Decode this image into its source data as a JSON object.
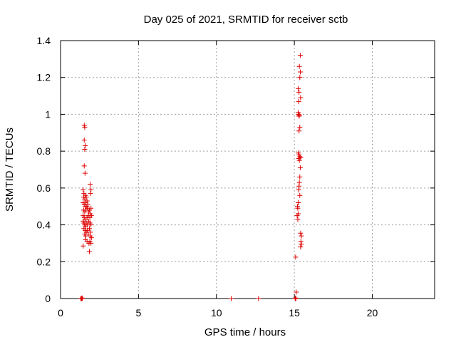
{
  "chart_data": {
    "type": "scatter",
    "title": "Day 025 of 2021, SRMTID for receiver sctb",
    "xlabel": "GPS time / hours",
    "ylabel": "SRMTID / TECUs",
    "xlim": [
      0,
      24
    ],
    "ylim": [
      0,
      1.4
    ],
    "xticks": [
      "0",
      "5",
      "10",
      "15",
      "20"
    ],
    "xtick_values": [
      0,
      5,
      10,
      15,
      20
    ],
    "yticks": [
      "0",
      "0.2",
      "0.4",
      "0.6",
      "0.8",
      "1",
      "1.2",
      "1.4"
    ],
    "ytick_values": [
      0,
      0.2,
      0.4,
      0.6,
      0.8,
      1.0,
      1.2,
      1.4
    ],
    "grid": true,
    "marker": "plus",
    "color": "#dd0000",
    "series": [
      {
        "name": "SRMTID",
        "points": [
          [
            1.3,
            0.0
          ],
          [
            1.33,
            0.0
          ],
          [
            1.36,
            0.0
          ],
          [
            1.4,
            0.0
          ],
          [
            1.38,
            0.003
          ],
          [
            1.52,
            0.94
          ],
          [
            1.55,
            0.93
          ],
          [
            1.52,
            0.86
          ],
          [
            1.58,
            0.83
          ],
          [
            1.55,
            0.81
          ],
          [
            1.52,
            0.72
          ],
          [
            1.57,
            0.68
          ],
          [
            1.45,
            0.59
          ],
          [
            1.5,
            0.57
          ],
          [
            1.48,
            0.55
          ],
          [
            1.55,
            0.54
          ],
          [
            1.6,
            0.56
          ],
          [
            1.65,
            0.55
          ],
          [
            1.7,
            0.53
          ],
          [
            1.45,
            0.52
          ],
          [
            1.52,
            0.51
          ],
          [
            1.58,
            0.5
          ],
          [
            1.62,
            0.52
          ],
          [
            1.68,
            0.5
          ],
          [
            1.72,
            0.49
          ],
          [
            1.75,
            0.51
          ],
          [
            1.48,
            0.48
          ],
          [
            1.55,
            0.47
          ],
          [
            1.63,
            0.48
          ],
          [
            1.8,
            0.47
          ],
          [
            1.85,
            0.48
          ],
          [
            1.9,
            0.46
          ],
          [
            1.95,
            0.49
          ],
          [
            1.45,
            0.45
          ],
          [
            1.52,
            0.44
          ],
          [
            1.6,
            0.43
          ],
          [
            1.7,
            0.44
          ],
          [
            1.78,
            0.45
          ],
          [
            1.88,
            0.44
          ],
          [
            1.98,
            0.45
          ],
          [
            1.45,
            0.42
          ],
          [
            1.5,
            0.41
          ],
          [
            1.55,
            0.4
          ],
          [
            1.6,
            0.39
          ],
          [
            1.65,
            0.41
          ],
          [
            1.72,
            0.4
          ],
          [
            1.8,
            0.42
          ],
          [
            1.88,
            0.41
          ],
          [
            1.95,
            0.4
          ],
          [
            1.5,
            0.38
          ],
          [
            1.58,
            0.37
          ],
          [
            1.65,
            0.36
          ],
          [
            1.72,
            0.37
          ],
          [
            1.85,
            0.38
          ],
          [
            1.92,
            0.36
          ],
          [
            1.55,
            0.35
          ],
          [
            1.62,
            0.34
          ],
          [
            1.78,
            0.35
          ],
          [
            1.9,
            0.34
          ],
          [
            1.98,
            0.33
          ],
          [
            1.6,
            0.32
          ],
          [
            1.7,
            0.31
          ],
          [
            1.82,
            0.3
          ],
          [
            1.88,
            0.31
          ],
          [
            1.95,
            0.3
          ],
          [
            1.45,
            0.285
          ],
          [
            1.9,
            0.62
          ],
          [
            1.95,
            0.59
          ],
          [
            1.85,
            0.255
          ],
          [
            1.92,
            0.57
          ],
          [
            10.95,
            0.0
          ],
          [
            12.7,
            0.0
          ],
          [
            15.05,
            0.0
          ],
          [
            15.1,
            0.0
          ],
          [
            15.08,
            0.003
          ],
          [
            15.12,
            0.035
          ],
          [
            15.08,
            0.225
          ],
          [
            15.38,
            1.32
          ],
          [
            15.32,
            1.26
          ],
          [
            15.38,
            1.23
          ],
          [
            15.35,
            1.2
          ],
          [
            15.25,
            1.14
          ],
          [
            15.3,
            1.12
          ],
          [
            15.4,
            1.09
          ],
          [
            15.28,
            1.07
          ],
          [
            15.25,
            1.01
          ],
          [
            15.28,
            1.0
          ],
          [
            15.32,
            0.995
          ],
          [
            15.3,
            0.99
          ],
          [
            15.35,
            0.93
          ],
          [
            15.3,
            0.91
          ],
          [
            15.25,
            0.79
          ],
          [
            15.3,
            0.78
          ],
          [
            15.35,
            0.77
          ],
          [
            15.4,
            0.765
          ],
          [
            15.28,
            0.76
          ],
          [
            15.32,
            0.75
          ],
          [
            15.38,
            0.71
          ],
          [
            15.35,
            0.66
          ],
          [
            15.32,
            0.63
          ],
          [
            15.3,
            0.61
          ],
          [
            15.28,
            0.59
          ],
          [
            15.35,
            0.56
          ],
          [
            15.25,
            0.52
          ],
          [
            15.2,
            0.5
          ],
          [
            15.22,
            0.49
          ],
          [
            15.25,
            0.46
          ],
          [
            15.18,
            0.45
          ],
          [
            15.22,
            0.43
          ],
          [
            15.4,
            0.355
          ],
          [
            15.45,
            0.34
          ],
          [
            15.42,
            0.31
          ],
          [
            15.45,
            0.295
          ],
          [
            15.4,
            0.28
          ]
        ]
      }
    ]
  }
}
